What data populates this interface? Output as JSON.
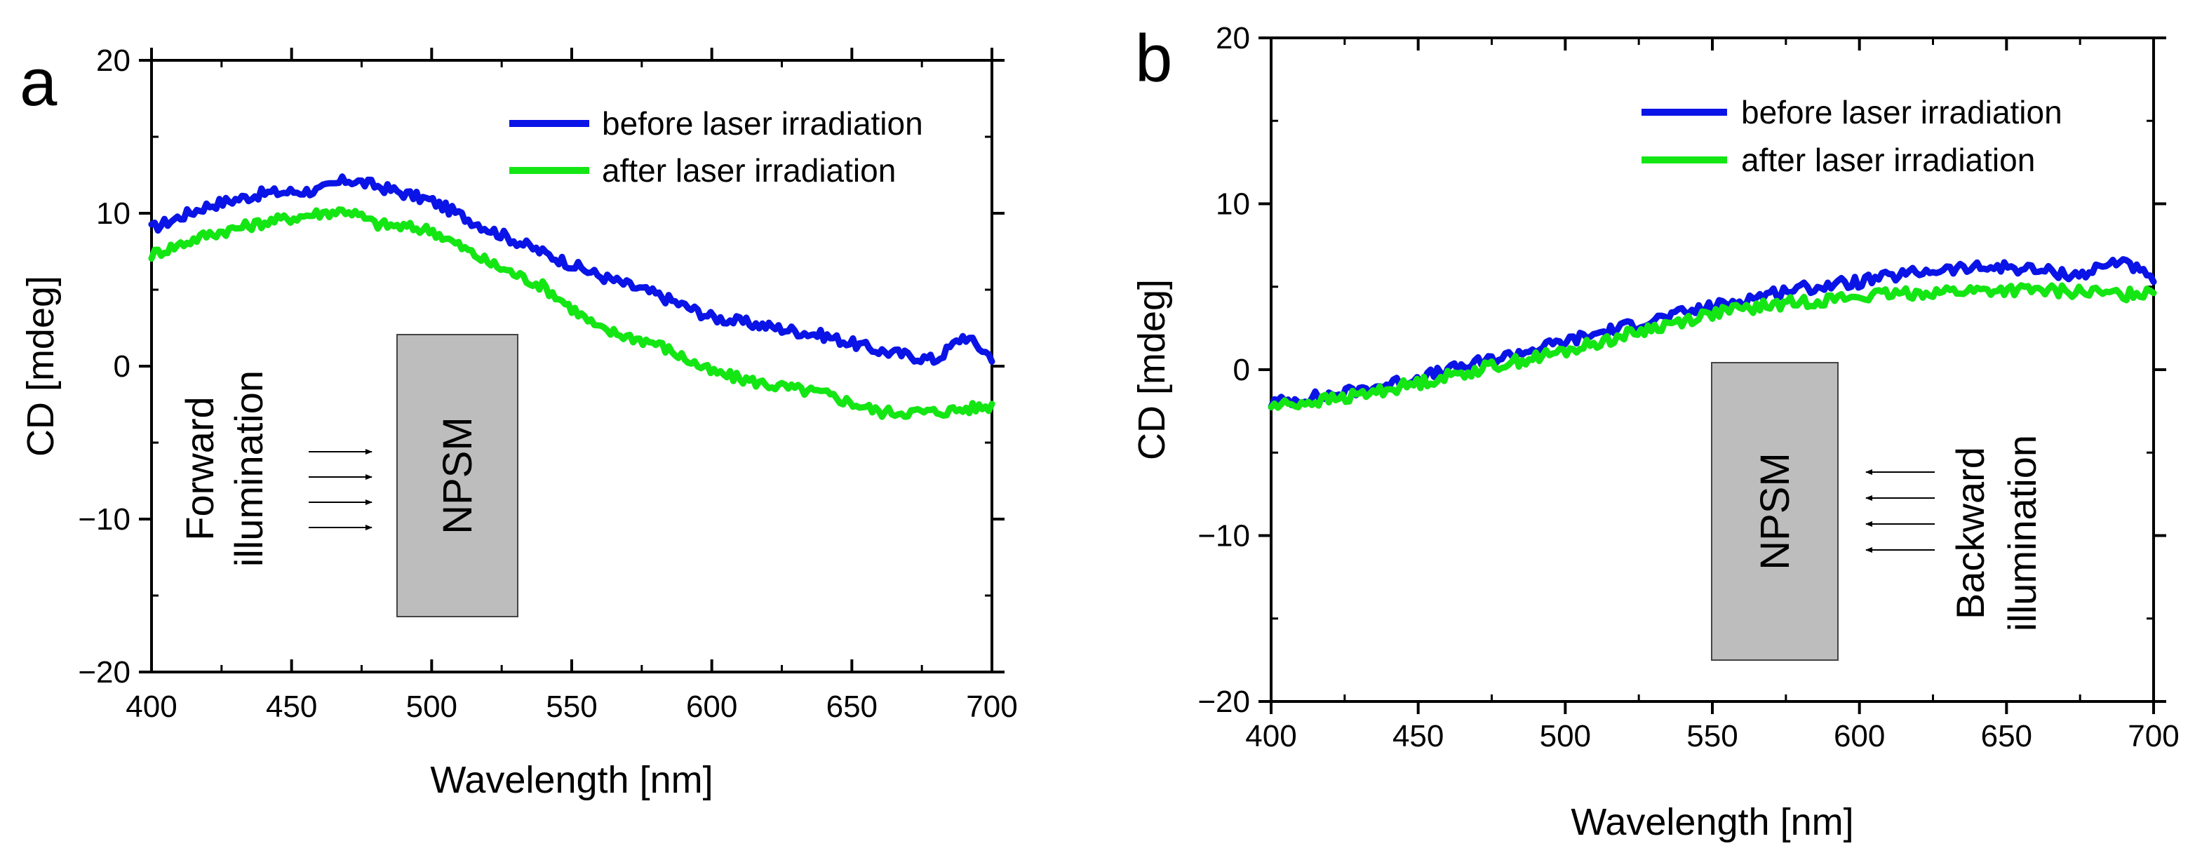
{
  "chart_data": [
    {
      "type": "line",
      "panel_label": "a",
      "title": "",
      "xlabel": "Wavelength [nm]",
      "ylabel": "CD [mdeg]",
      "xlim": [
        400,
        700
      ],
      "ylim": [
        -20,
        20
      ],
      "xticks": [
        "400",
        "450",
        "500",
        "550",
        "600",
        "650",
        "700"
      ],
      "yticks": [
        "−20",
        "−10",
        "0",
        "10",
        "20"
      ],
      "legend_position": "top-right",
      "x": [
        400,
        420,
        440,
        460,
        470,
        480,
        500,
        520,
        540,
        560,
        580,
        600,
        620,
        640,
        660,
        680,
        690,
        700
      ],
      "series": [
        {
          "name": "before laser irradiation",
          "color": "#0a14e6",
          "values": [
            9,
            10.5,
            11.3,
            11.5,
            12.2,
            11.8,
            10.8,
            9.0,
            7.4,
            5.9,
            4.7,
            3.2,
            2.6,
            2.0,
            1.0,
            0.4,
            2.0,
            0.6
          ]
        },
        {
          "name": "after laser irradiation",
          "color": "#14e614",
          "values": [
            7.3,
            8.6,
            9.4,
            10.0,
            10.2,
            9.3,
            8.9,
            6.8,
            5.2,
            2.4,
            1.5,
            -0.4,
            -1.2,
            -1.8,
            -3.0,
            -3.0,
            -2.8,
            -2.6
          ]
        }
      ],
      "annotations": {
        "illumination_line1": "Forward",
        "illumination_line2": "illumination",
        "box_label": "NPSM",
        "arrow_direction": "right"
      }
    },
    {
      "type": "line",
      "panel_label": "b",
      "title": "",
      "xlabel": "Wavelength [nm]",
      "ylabel": "CD [mdeg]",
      "xlim": [
        400,
        700
      ],
      "ylim": [
        -20,
        20
      ],
      "xticks": [
        "400",
        "450",
        "500",
        "550",
        "600",
        "650",
        "700"
      ],
      "yticks": [
        "−20",
        "−10",
        "0",
        "10",
        "20"
      ],
      "legend_position": "top-right",
      "x": [
        400,
        425,
        450,
        475,
        500,
        525,
        550,
        575,
        600,
        625,
        650,
        675,
        690,
        700
      ],
      "series": [
        {
          "name": "before laser irradiation",
          "color": "#0a14e6",
          "values": [
            -2.0,
            -1.4,
            -0.5,
            0.6,
            1.7,
            2.8,
            3.8,
            4.8,
            5.3,
            6.0,
            6.2,
            5.7,
            6.7,
            5.2
          ]
        },
        {
          "name": "after laser irradiation",
          "color": "#14e614",
          "values": [
            -2.2,
            -1.7,
            -0.8,
            0.2,
            1.1,
            2.3,
            3.4,
            4.0,
            4.4,
            4.7,
            4.8,
            4.7,
            4.5,
            4.8
          ]
        }
      ],
      "annotations": {
        "illumination_line1": "Backward",
        "illumination_line2": "illumination",
        "box_label": "NPSM",
        "arrow_direction": "left"
      }
    }
  ]
}
